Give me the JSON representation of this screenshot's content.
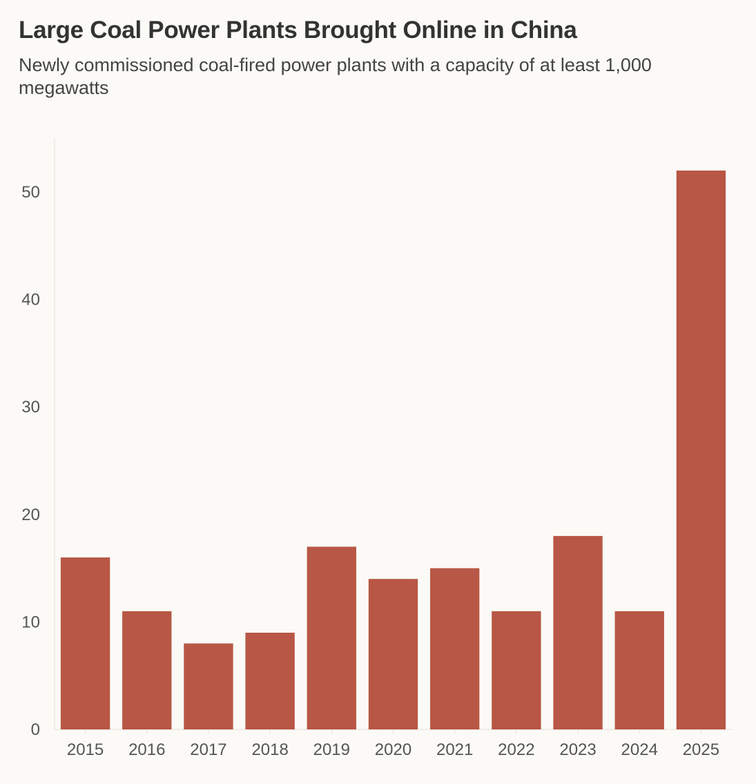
{
  "chart_data": {
    "type": "bar",
    "title": "Large Coal Power Plants Brought Online in China",
    "subtitle": "Newly commissioned coal-fired power plants with a capacity of at least 1,000 megawatts",
    "xlabel": "",
    "ylabel": "",
    "categories": [
      "2015",
      "2016",
      "2017",
      "2018",
      "2019",
      "2020",
      "2021",
      "2022",
      "2023",
      "2024",
      "2025"
    ],
    "values": [
      16,
      11,
      8,
      9,
      17,
      14,
      15,
      11,
      18,
      11,
      52
    ],
    "ylim": [
      0,
      55
    ],
    "yticks": [
      0,
      10,
      20,
      30,
      40,
      50
    ],
    "grid": false,
    "bar_color": "#b85745",
    "background": "#fbfaf6"
  }
}
